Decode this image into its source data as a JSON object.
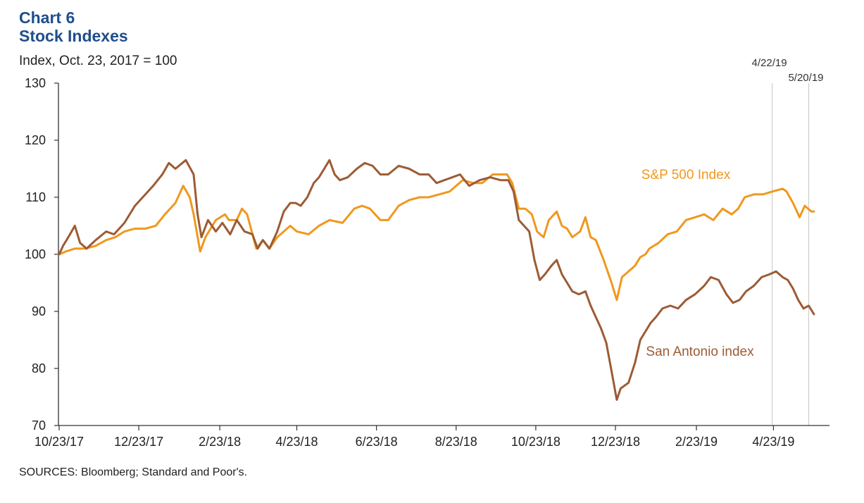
{
  "title": "Chart 6",
  "subtitle": "Stock Indexes",
  "source": "SOURCES: Bloomberg; Standard and Poor's.",
  "chart_data": {
    "type": "line",
    "ylabel": "Index, Oct. 23, 2017 = 100",
    "ylim": [
      70,
      130
    ],
    "yticks": [
      70,
      80,
      90,
      100,
      110,
      120,
      130
    ],
    "x_range": [
      "2017-10-23",
      "2019-05-31"
    ],
    "x_ticks": [
      {
        "date": "2017-10-23",
        "label": "10/23/17"
      },
      {
        "date": "2017-12-23",
        "label": "12/23/17"
      },
      {
        "date": "2018-02-23",
        "label": "2/23/18"
      },
      {
        "date": "2018-04-23",
        "label": "4/23/18"
      },
      {
        "date": "2018-06-23",
        "label": "6/23/18"
      },
      {
        "date": "2018-08-23",
        "label": "8/23/18"
      },
      {
        "date": "2018-10-23",
        "label": "10/23/18"
      },
      {
        "date": "2018-12-23",
        "label": "12/23/18"
      },
      {
        "date": "2019-02-23",
        "label": "2/23/19"
      },
      {
        "date": "2019-04-23",
        "label": "4/23/19"
      }
    ],
    "reference_lines": [
      {
        "date": "2019-04-22",
        "label": "4/22/19"
      },
      {
        "date": "2019-05-20",
        "label": "5/20/19"
      }
    ],
    "grid": false,
    "series": [
      {
        "name": "S&P 500 Index",
        "color": "#f0981e",
        "points": [
          [
            "2017-10-23",
            100
          ],
          [
            "2017-10-28",
            100.5
          ],
          [
            "2017-11-04",
            101
          ],
          [
            "2017-11-12",
            101
          ],
          [
            "2017-11-20",
            101.5
          ],
          [
            "2017-11-28",
            102.5
          ],
          [
            "2017-12-05",
            103
          ],
          [
            "2017-12-12",
            104
          ],
          [
            "2017-12-20",
            104.5
          ],
          [
            "2017-12-28",
            104.5
          ],
          [
            "2018-01-05",
            105
          ],
          [
            "2018-01-12",
            107
          ],
          [
            "2018-01-20",
            109
          ],
          [
            "2018-01-26",
            112
          ],
          [
            "2018-01-31",
            110
          ],
          [
            "2018-02-03",
            107
          ],
          [
            "2018-02-08",
            100.5
          ],
          [
            "2018-02-12",
            103
          ],
          [
            "2018-02-20",
            106
          ],
          [
            "2018-02-27",
            107
          ],
          [
            "2018-03-02",
            106
          ],
          [
            "2018-03-08",
            106
          ],
          [
            "2018-03-12",
            108
          ],
          [
            "2018-03-16",
            107
          ],
          [
            "2018-03-23",
            101
          ],
          [
            "2018-03-28",
            102.5
          ],
          [
            "2018-04-02",
            101
          ],
          [
            "2018-04-08",
            103
          ],
          [
            "2018-04-13",
            104
          ],
          [
            "2018-04-18",
            105
          ],
          [
            "2018-04-23",
            104
          ],
          [
            "2018-05-02",
            103.5
          ],
          [
            "2018-05-10",
            105
          ],
          [
            "2018-05-18",
            106
          ],
          [
            "2018-05-28",
            105.5
          ],
          [
            "2018-06-06",
            108
          ],
          [
            "2018-06-12",
            108.5
          ],
          [
            "2018-06-18",
            108
          ],
          [
            "2018-06-26",
            106
          ],
          [
            "2018-07-02",
            106
          ],
          [
            "2018-07-10",
            108.5
          ],
          [
            "2018-07-18",
            109.5
          ],
          [
            "2018-07-26",
            110
          ],
          [
            "2018-08-02",
            110
          ],
          [
            "2018-08-10",
            110.5
          ],
          [
            "2018-08-18",
            111
          ],
          [
            "2018-08-28",
            113
          ],
          [
            "2018-09-05",
            112.5
          ],
          [
            "2018-09-12",
            112.5
          ],
          [
            "2018-09-20",
            114
          ],
          [
            "2018-10-01",
            114
          ],
          [
            "2018-10-05",
            112.5
          ],
          [
            "2018-10-10",
            108
          ],
          [
            "2018-10-15",
            108
          ],
          [
            "2018-10-20",
            107
          ],
          [
            "2018-10-24",
            104
          ],
          [
            "2018-10-29",
            103
          ],
          [
            "2018-11-02",
            106
          ],
          [
            "2018-11-08",
            107.5
          ],
          [
            "2018-11-12",
            105
          ],
          [
            "2018-11-16",
            104.5
          ],
          [
            "2018-11-20",
            103
          ],
          [
            "2018-11-26",
            104
          ],
          [
            "2018-11-30",
            106.5
          ],
          [
            "2018-12-04",
            103
          ],
          [
            "2018-12-08",
            102.5
          ],
          [
            "2018-12-14",
            99
          ],
          [
            "2018-12-20",
            95
          ],
          [
            "2018-12-24",
            92
          ],
          [
            "2018-12-28",
            96
          ],
          [
            "2019-01-02",
            97
          ],
          [
            "2019-01-07",
            98
          ],
          [
            "2019-01-11",
            99.5
          ],
          [
            "2019-01-15",
            100
          ],
          [
            "2019-01-18",
            101
          ],
          [
            "2019-01-25",
            102
          ],
          [
            "2019-02-01",
            103.5
          ],
          [
            "2019-02-08",
            104
          ],
          [
            "2019-02-15",
            106
          ],
          [
            "2019-02-22",
            106.5
          ],
          [
            "2019-03-01",
            107
          ],
          [
            "2019-03-08",
            106
          ],
          [
            "2019-03-15",
            108
          ],
          [
            "2019-03-22",
            107
          ],
          [
            "2019-03-27",
            108
          ],
          [
            "2019-04-01",
            110
          ],
          [
            "2019-04-08",
            110.5
          ],
          [
            "2019-04-15",
            110.5
          ],
          [
            "2019-04-22",
            111
          ],
          [
            "2019-04-30",
            111.5
          ],
          [
            "2019-05-03",
            111
          ],
          [
            "2019-05-08",
            109
          ],
          [
            "2019-05-13",
            106.5
          ],
          [
            "2019-05-17",
            108.5
          ],
          [
            "2019-05-22",
            107.5
          ],
          [
            "2019-05-24",
            107.5
          ]
        ]
      },
      {
        "name": "San Antonio index",
        "color": "#9c5b34",
        "points": [
          [
            "2017-10-23",
            100
          ],
          [
            "2017-10-26",
            101.5
          ],
          [
            "2017-10-30",
            103
          ],
          [
            "2017-11-04",
            105
          ],
          [
            "2017-11-08",
            102
          ],
          [
            "2017-11-13",
            101
          ],
          [
            "2017-11-20",
            102.5
          ],
          [
            "2017-11-28",
            104
          ],
          [
            "2017-12-04",
            103.5
          ],
          [
            "2017-12-12",
            105.5
          ],
          [
            "2017-12-20",
            108.5
          ],
          [
            "2017-12-26",
            110
          ],
          [
            "2018-01-03",
            112
          ],
          [
            "2018-01-10",
            114
          ],
          [
            "2018-01-15",
            116
          ],
          [
            "2018-01-20",
            115
          ],
          [
            "2018-01-28",
            116.5
          ],
          [
            "2018-02-03",
            114
          ],
          [
            "2018-02-06",
            107
          ],
          [
            "2018-02-09",
            103
          ],
          [
            "2018-02-14",
            106
          ],
          [
            "2018-02-20",
            104
          ],
          [
            "2018-02-25",
            105.5
          ],
          [
            "2018-03-03",
            103.5
          ],
          [
            "2018-03-08",
            106
          ],
          [
            "2018-03-14",
            104
          ],
          [
            "2018-03-20",
            103.5
          ],
          [
            "2018-03-24",
            101
          ],
          [
            "2018-03-28",
            102.5
          ],
          [
            "2018-04-02",
            101
          ],
          [
            "2018-04-08",
            104
          ],
          [
            "2018-04-13",
            107.5
          ],
          [
            "2018-04-18",
            109
          ],
          [
            "2018-04-22",
            109
          ],
          [
            "2018-04-26",
            108.5
          ],
          [
            "2018-05-01",
            110
          ],
          [
            "2018-05-06",
            112.5
          ],
          [
            "2018-05-10",
            113.5
          ],
          [
            "2018-05-14",
            115
          ],
          [
            "2018-05-18",
            116.5
          ],
          [
            "2018-05-22",
            114
          ],
          [
            "2018-05-26",
            113
          ],
          [
            "2018-06-01",
            113.5
          ],
          [
            "2018-06-08",
            115
          ],
          [
            "2018-06-14",
            116
          ],
          [
            "2018-06-20",
            115.5
          ],
          [
            "2018-06-26",
            114
          ],
          [
            "2018-07-02",
            114
          ],
          [
            "2018-07-10",
            115.5
          ],
          [
            "2018-07-18",
            115
          ],
          [
            "2018-07-26",
            114
          ],
          [
            "2018-08-02",
            114
          ],
          [
            "2018-08-08",
            112.5
          ],
          [
            "2018-08-14",
            113
          ],
          [
            "2018-08-20",
            113.5
          ],
          [
            "2018-08-26",
            114
          ],
          [
            "2018-09-02",
            112
          ],
          [
            "2018-09-10",
            113
          ],
          [
            "2018-09-18",
            113.5
          ],
          [
            "2018-09-26",
            113
          ],
          [
            "2018-10-02",
            113
          ],
          [
            "2018-10-06",
            111
          ],
          [
            "2018-10-10",
            106
          ],
          [
            "2018-10-14",
            105
          ],
          [
            "2018-10-18",
            104
          ],
          [
            "2018-10-22",
            99
          ],
          [
            "2018-10-26",
            95.5
          ],
          [
            "2018-10-30",
            96.5
          ],
          [
            "2018-11-04",
            98
          ],
          [
            "2018-11-08",
            99
          ],
          [
            "2018-11-12",
            96.5
          ],
          [
            "2018-11-16",
            95
          ],
          [
            "2018-11-20",
            93.5
          ],
          [
            "2018-11-25",
            93
          ],
          [
            "2018-11-30",
            93.5
          ],
          [
            "2018-12-04",
            91
          ],
          [
            "2018-12-08",
            89
          ],
          [
            "2018-12-12",
            87
          ],
          [
            "2018-12-16",
            84.5
          ],
          [
            "2018-12-20",
            79.5
          ],
          [
            "2018-12-24",
            74.5
          ],
          [
            "2018-12-27",
            76.5
          ],
          [
            "2019-01-02",
            77.5
          ],
          [
            "2019-01-07",
            81
          ],
          [
            "2019-01-11",
            85
          ],
          [
            "2019-01-15",
            86.5
          ],
          [
            "2019-01-19",
            88
          ],
          [
            "2019-01-23",
            89
          ],
          [
            "2019-01-28",
            90.5
          ],
          [
            "2019-02-03",
            91
          ],
          [
            "2019-02-09",
            90.5
          ],
          [
            "2019-02-15",
            92
          ],
          [
            "2019-02-22",
            93
          ],
          [
            "2019-03-01",
            94.5
          ],
          [
            "2019-03-06",
            96
          ],
          [
            "2019-03-12",
            95.5
          ],
          [
            "2019-03-18",
            93
          ],
          [
            "2019-03-23",
            91.5
          ],
          [
            "2019-03-28",
            92
          ],
          [
            "2019-04-02",
            93.5
          ],
          [
            "2019-04-08",
            94.5
          ],
          [
            "2019-04-14",
            96
          ],
          [
            "2019-04-20",
            96.5
          ],
          [
            "2019-04-25",
            97
          ],
          [
            "2019-04-30",
            96
          ],
          [
            "2019-05-04",
            95.5
          ],
          [
            "2019-05-08",
            94
          ],
          [
            "2019-05-12",
            92
          ],
          [
            "2019-05-16",
            90.5
          ],
          [
            "2019-05-20",
            91
          ],
          [
            "2019-05-24",
            89.5
          ]
        ]
      }
    ],
    "series_labels": [
      {
        "text": "S&P 500 Index",
        "color": "#f0981e"
      },
      {
        "text": "San Antonio index",
        "color": "#9c5b34"
      }
    ]
  }
}
